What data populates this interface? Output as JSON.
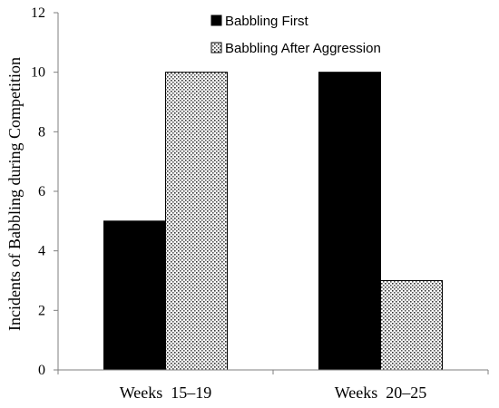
{
  "chart_data": {
    "type": "bar",
    "title": "",
    "xlabel": "",
    "ylabel": "Incidents of Babbling during Competition",
    "categories": [
      "Weeks  15–19",
      "Weeks  20–25"
    ],
    "series": [
      {
        "name": "Babbling First",
        "values": [
          5,
          10
        ],
        "fill": "#000000"
      },
      {
        "name": "Babbling After Aggression",
        "values": [
          10,
          3
        ],
        "fill": "dotted-pattern"
      }
    ],
    "ylim": [
      0,
      12
    ],
    "yticks": [
      0,
      2,
      4,
      6,
      8,
      10,
      12
    ],
    "grid": false,
    "legend_position": "top-center"
  }
}
